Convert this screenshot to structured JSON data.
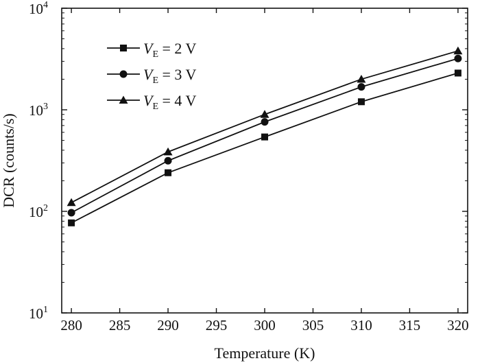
{
  "chart_data": {
    "type": "line",
    "xlabel": "Temperature (K)",
    "ylabel": "DCR (counts/s)",
    "yscale": "log",
    "xlim": [
      279,
      321
    ],
    "ylim": [
      10,
      10000
    ],
    "x_ticks": [
      280,
      285,
      290,
      295,
      300,
      305,
      310,
      315,
      320
    ],
    "y_ticks": [
      {
        "value": 10,
        "base": "10",
        "exp": "1"
      },
      {
        "value": 100,
        "base": "10",
        "exp": "2"
      },
      {
        "value": 1000,
        "base": "10",
        "exp": "3"
      },
      {
        "value": 10000,
        "base": "10",
        "exp": "4"
      }
    ],
    "legend": {
      "placement": "top-left",
      "var": "V",
      "sub": "E"
    },
    "x": [
      280,
      290,
      300,
      310,
      320
    ],
    "series": [
      {
        "name": "VE = 2 V",
        "label_rest": " = 2 V",
        "marker": "square",
        "values": [
          77,
          240,
          540,
          1200,
          2300
        ]
      },
      {
        "name": "VE = 3 V",
        "label_rest": " = 3 V",
        "marker": "circle",
        "values": [
          97,
          315,
          760,
          1680,
          3200
        ]
      },
      {
        "name": "VE = 4 V",
        "label_rest": " = 4 V",
        "marker": "triangle",
        "values": [
          122,
          385,
          900,
          2000,
          3800
        ]
      }
    ]
  }
}
